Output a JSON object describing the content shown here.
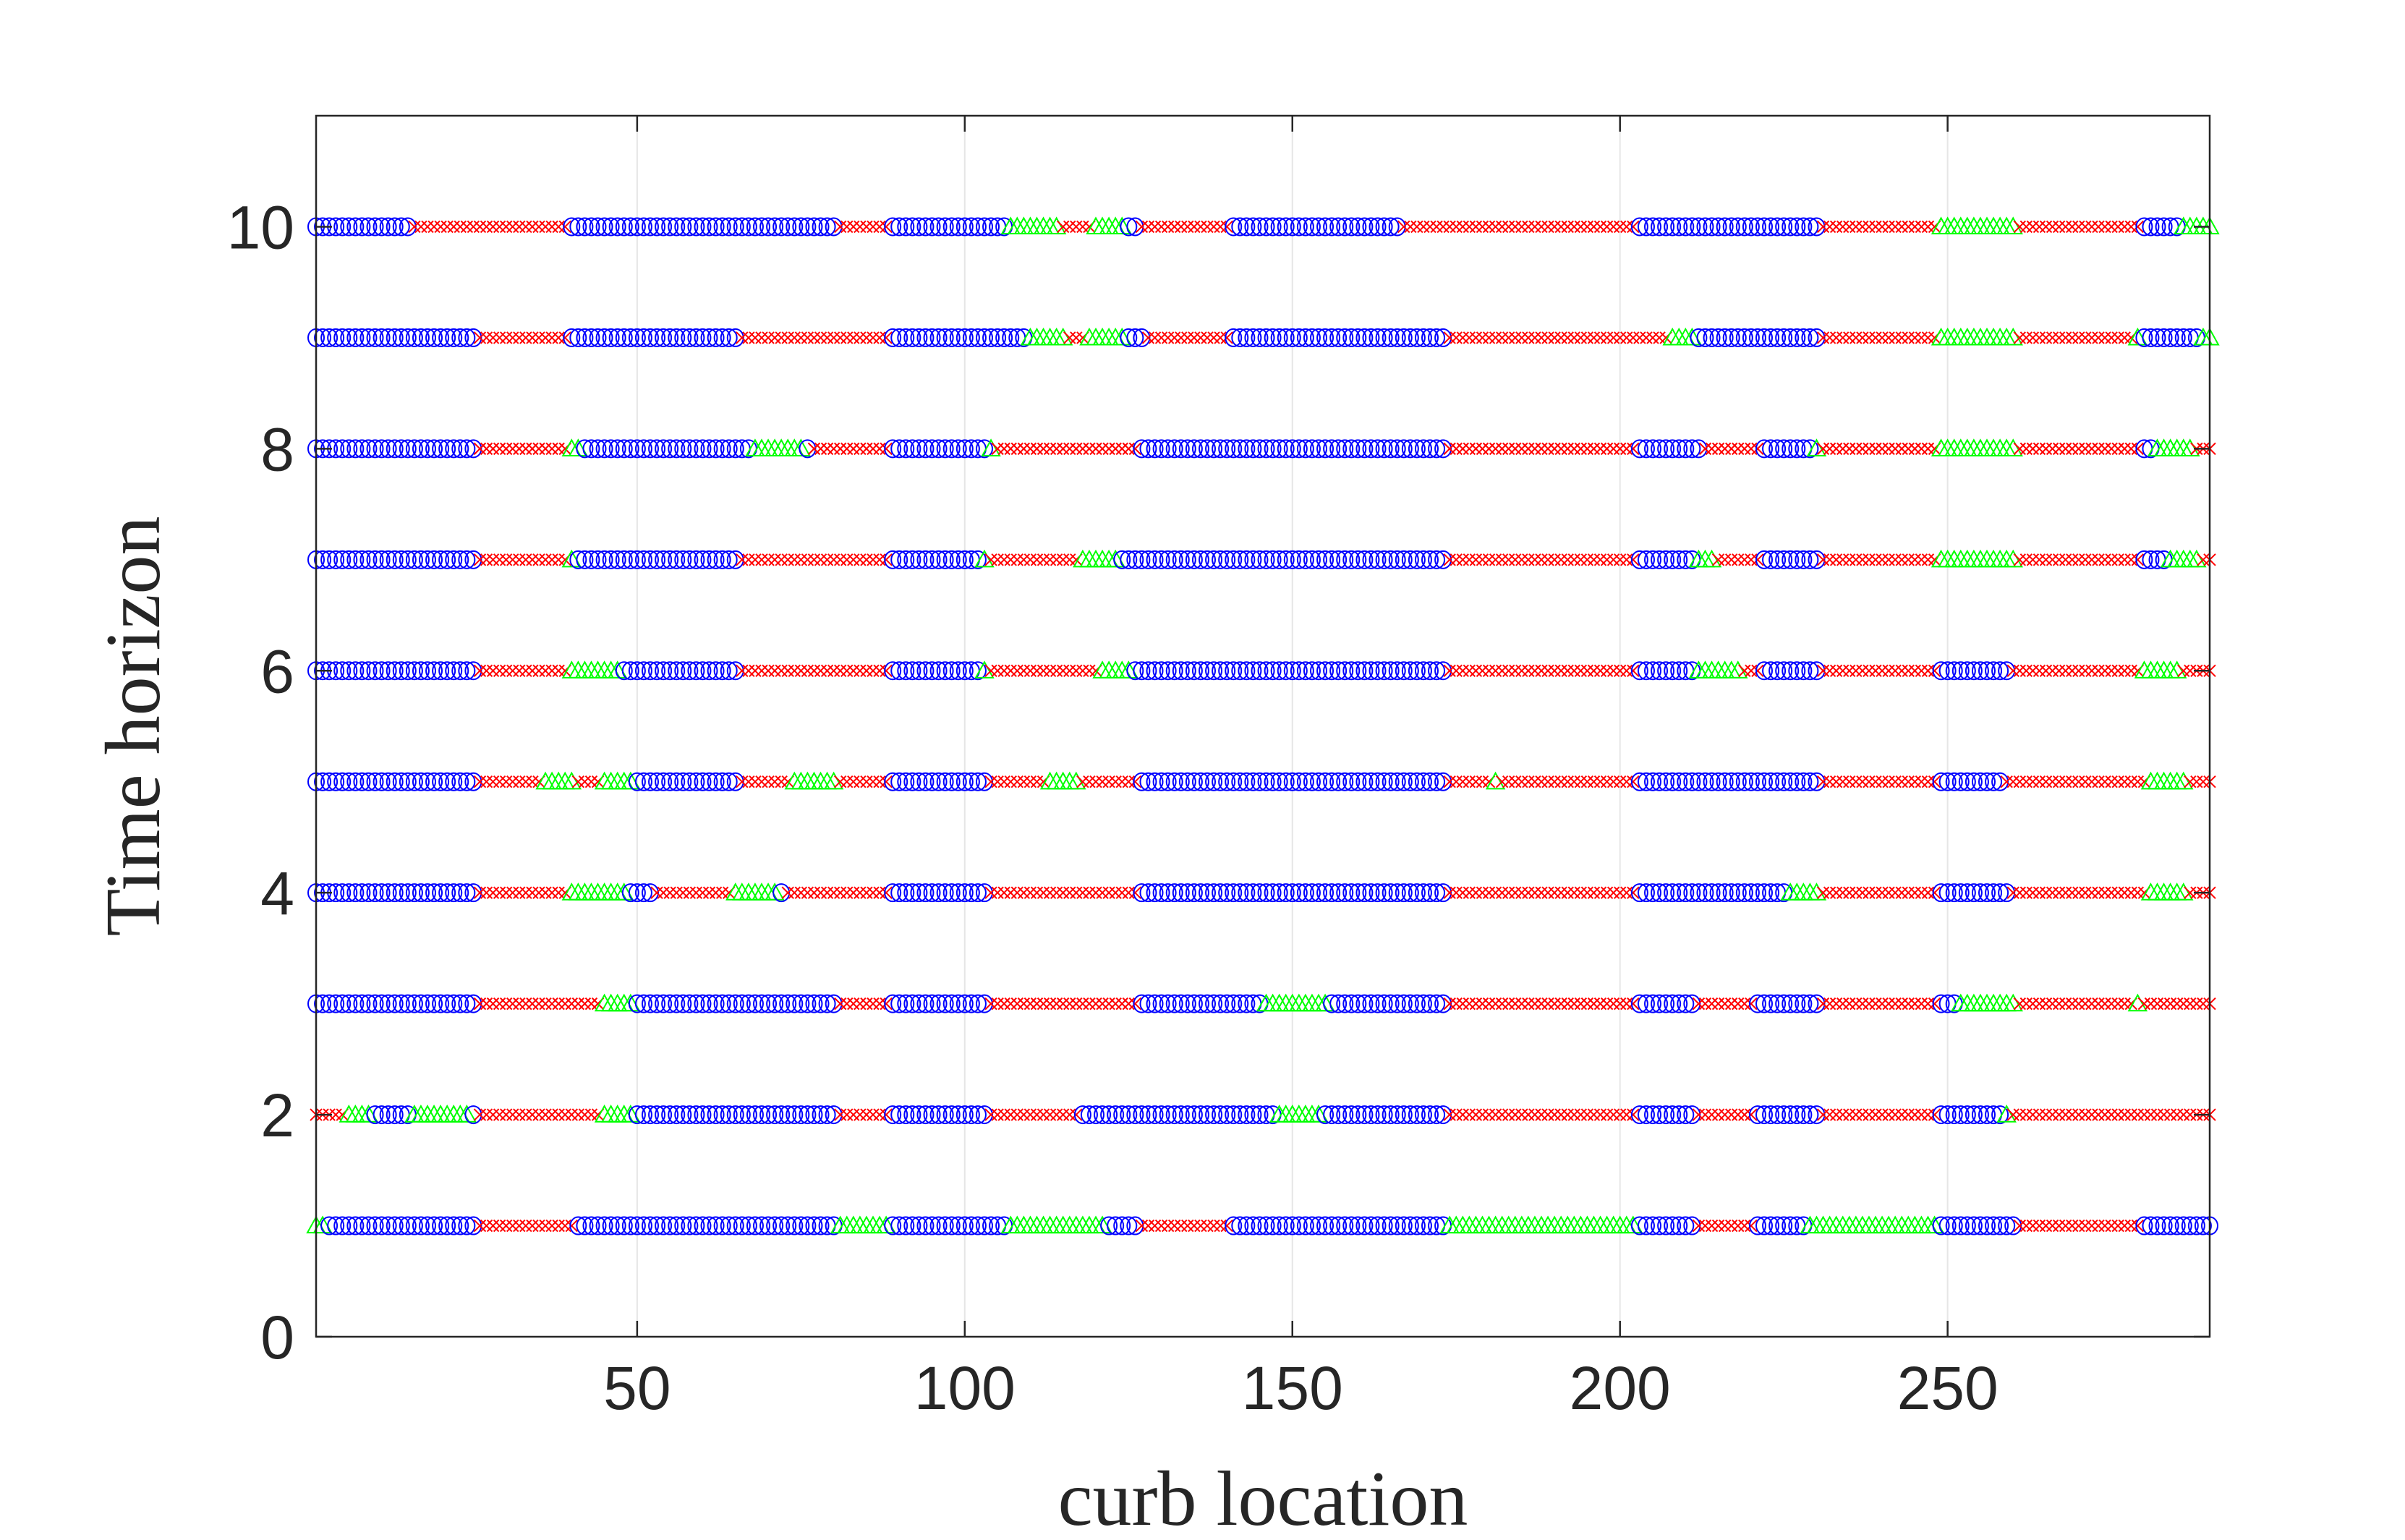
{
  "chart_data": {
    "type": "scatter",
    "title": "",
    "xlabel": "curb location",
    "ylabel": "Time horizon",
    "xlim": [
      1,
      290
    ],
    "ylim": [
      0,
      11
    ],
    "xticks": [
      50,
      100,
      150,
      200,
      250
    ],
    "yticks": [
      0,
      2,
      4,
      6,
      8,
      10
    ],
    "grid": "x",
    "colors": {
      "circle": "#0000ff",
      "cross": "#ff0000",
      "triangle": "#00ff00",
      "axis": "#262626",
      "grid": "#e6e6e6"
    },
    "marker_types": [
      "circle",
      "cross",
      "triangle"
    ],
    "rows": [
      {
        "y": 1,
        "segments": [
          [
            1,
            2,
            "triangle"
          ],
          [
            3,
            25,
            "circle"
          ],
          [
            26,
            40,
            "cross"
          ],
          [
            41,
            80,
            "circle"
          ],
          [
            81,
            88,
            "triangle"
          ],
          [
            89,
            106,
            "circle"
          ],
          [
            107,
            121,
            "triangle"
          ],
          [
            122,
            126,
            "circle"
          ],
          [
            127,
            140,
            "cross"
          ],
          [
            141,
            173,
            "circle"
          ],
          [
            174,
            202,
            "triangle"
          ],
          [
            203,
            211,
            "circle"
          ],
          [
            212,
            220,
            "cross"
          ],
          [
            221,
            228,
            "circle"
          ],
          [
            229,
            248,
            "triangle"
          ],
          [
            249,
            260,
            "circle"
          ],
          [
            261,
            279,
            "cross"
          ],
          [
            280,
            290,
            "circle"
          ]
        ]
      },
      {
        "y": 2,
        "segments": [
          [
            1,
            5,
            "cross"
          ],
          [
            6,
            9,
            "triangle"
          ],
          [
            10,
            15,
            "circle"
          ],
          [
            16,
            24,
            "triangle"
          ],
          [
            25,
            25,
            "circle"
          ],
          [
            26,
            44,
            "cross"
          ],
          [
            45,
            49,
            "triangle"
          ],
          [
            50,
            80,
            "circle"
          ],
          [
            81,
            88,
            "cross"
          ],
          [
            89,
            103,
            "circle"
          ],
          [
            104,
            117,
            "cross"
          ],
          [
            118,
            147,
            "circle"
          ],
          [
            148,
            154,
            "triangle"
          ],
          [
            155,
            173,
            "circle"
          ],
          [
            174,
            202,
            "cross"
          ],
          [
            203,
            211,
            "circle"
          ],
          [
            212,
            220,
            "cross"
          ],
          [
            221,
            230,
            "circle"
          ],
          [
            231,
            248,
            "cross"
          ],
          [
            249,
            258,
            "circle"
          ],
          [
            259,
            259,
            "triangle"
          ],
          [
            260,
            290,
            "cross"
          ]
        ]
      },
      {
        "y": 3,
        "segments": [
          [
            1,
            25,
            "circle"
          ],
          [
            26,
            44,
            "cross"
          ],
          [
            45,
            49,
            "triangle"
          ],
          [
            50,
            80,
            "circle"
          ],
          [
            81,
            88,
            "cross"
          ],
          [
            89,
            103,
            "circle"
          ],
          [
            104,
            126,
            "cross"
          ],
          [
            127,
            145,
            "circle"
          ],
          [
            146,
            155,
            "triangle"
          ],
          [
            156,
            173,
            "circle"
          ],
          [
            174,
            202,
            "cross"
          ],
          [
            203,
            211,
            "circle"
          ],
          [
            212,
            220,
            "cross"
          ],
          [
            221,
            230,
            "circle"
          ],
          [
            231,
            248,
            "cross"
          ],
          [
            249,
            251,
            "circle"
          ],
          [
            252,
            260,
            "triangle"
          ],
          [
            261,
            278,
            "cross"
          ],
          [
            279,
            279,
            "triangle"
          ],
          [
            280,
            290,
            "cross"
          ]
        ]
      },
      {
        "y": 4,
        "segments": [
          [
            1,
            25,
            "circle"
          ],
          [
            26,
            39,
            "cross"
          ],
          [
            40,
            48,
            "triangle"
          ],
          [
            49,
            52,
            "circle"
          ],
          [
            53,
            64,
            "cross"
          ],
          [
            65,
            71,
            "triangle"
          ],
          [
            72,
            72,
            "circle"
          ],
          [
            73,
            88,
            "cross"
          ],
          [
            89,
            103,
            "circle"
          ],
          [
            104,
            126,
            "cross"
          ],
          [
            127,
            173,
            "circle"
          ],
          [
            174,
            202,
            "cross"
          ],
          [
            203,
            225,
            "circle"
          ],
          [
            226,
            230,
            "triangle"
          ],
          [
            231,
            248,
            "cross"
          ],
          [
            249,
            259,
            "circle"
          ],
          [
            260,
            280,
            "cross"
          ],
          [
            281,
            286,
            "triangle"
          ],
          [
            287,
            290,
            "cross"
          ]
        ]
      },
      {
        "y": 5,
        "segments": [
          [
            1,
            25,
            "circle"
          ],
          [
            26,
            35,
            "cross"
          ],
          [
            36,
            40,
            "triangle"
          ],
          [
            41,
            44,
            "cross"
          ],
          [
            45,
            49,
            "triangle"
          ],
          [
            50,
            65,
            "circle"
          ],
          [
            66,
            73,
            "cross"
          ],
          [
            74,
            80,
            "triangle"
          ],
          [
            81,
            88,
            "cross"
          ],
          [
            89,
            103,
            "circle"
          ],
          [
            104,
            112,
            "cross"
          ],
          [
            113,
            117,
            "triangle"
          ],
          [
            118,
            126,
            "cross"
          ],
          [
            127,
            173,
            "circle"
          ],
          [
            174,
            180,
            "cross"
          ],
          [
            181,
            181,
            "triangle"
          ],
          [
            182,
            202,
            "cross"
          ],
          [
            203,
            230,
            "circle"
          ],
          [
            231,
            248,
            "cross"
          ],
          [
            249,
            258,
            "circle"
          ],
          [
            259,
            280,
            "cross"
          ],
          [
            281,
            286,
            "triangle"
          ],
          [
            287,
            290,
            "cross"
          ]
        ]
      },
      {
        "y": 6,
        "segments": [
          [
            1,
            25,
            "circle"
          ],
          [
            26,
            39,
            "cross"
          ],
          [
            40,
            47,
            "triangle"
          ],
          [
            48,
            65,
            "circle"
          ],
          [
            66,
            88,
            "cross"
          ],
          [
            89,
            102,
            "circle"
          ],
          [
            103,
            103,
            "triangle"
          ],
          [
            104,
            120,
            "cross"
          ],
          [
            121,
            125,
            "triangle"
          ],
          [
            126,
            173,
            "circle"
          ],
          [
            174,
            202,
            "cross"
          ],
          [
            203,
            211,
            "circle"
          ],
          [
            212,
            218,
            "triangle"
          ],
          [
            219,
            221,
            "cross"
          ],
          [
            222,
            230,
            "circle"
          ],
          [
            231,
            248,
            "cross"
          ],
          [
            249,
            259,
            "circle"
          ],
          [
            260,
            279,
            "cross"
          ],
          [
            280,
            285,
            "triangle"
          ],
          [
            286,
            290,
            "cross"
          ]
        ]
      },
      {
        "y": 7,
        "segments": [
          [
            1,
            25,
            "circle"
          ],
          [
            26,
            39,
            "cross"
          ],
          [
            40,
            40,
            "triangle"
          ],
          [
            41,
            65,
            "circle"
          ],
          [
            66,
            88,
            "cross"
          ],
          [
            89,
            102,
            "circle"
          ],
          [
            103,
            103,
            "triangle"
          ],
          [
            104,
            117,
            "cross"
          ],
          [
            118,
            123,
            "triangle"
          ],
          [
            124,
            173,
            "circle"
          ],
          [
            174,
            202,
            "cross"
          ],
          [
            203,
            211,
            "circle"
          ],
          [
            212,
            214,
            "triangle"
          ],
          [
            215,
            221,
            "cross"
          ],
          [
            222,
            230,
            "circle"
          ],
          [
            231,
            248,
            "cross"
          ],
          [
            249,
            260,
            "triangle"
          ],
          [
            261,
            279,
            "cross"
          ],
          [
            280,
            283,
            "circle"
          ],
          [
            284,
            288,
            "triangle"
          ],
          [
            289,
            290,
            "cross"
          ]
        ]
      },
      {
        "y": 8,
        "segments": [
          [
            1,
            25,
            "circle"
          ],
          [
            26,
            39,
            "cross"
          ],
          [
            40,
            41,
            "triangle"
          ],
          [
            42,
            67,
            "circle"
          ],
          [
            68,
            75,
            "triangle"
          ],
          [
            76,
            76,
            "circle"
          ],
          [
            77,
            88,
            "cross"
          ],
          [
            89,
            103,
            "circle"
          ],
          [
            104,
            104,
            "triangle"
          ],
          [
            105,
            126,
            "cross"
          ],
          [
            127,
            173,
            "circle"
          ],
          [
            174,
            202,
            "cross"
          ],
          [
            203,
            212,
            "circle"
          ],
          [
            213,
            221,
            "cross"
          ],
          [
            222,
            229,
            "circle"
          ],
          [
            230,
            230,
            "triangle"
          ],
          [
            231,
            248,
            "cross"
          ],
          [
            249,
            260,
            "triangle"
          ],
          [
            261,
            279,
            "cross"
          ],
          [
            280,
            281,
            "circle"
          ],
          [
            282,
            287,
            "triangle"
          ],
          [
            288,
            290,
            "cross"
          ]
        ]
      },
      {
        "y": 9,
        "segments": [
          [
            1,
            25,
            "circle"
          ],
          [
            26,
            39,
            "cross"
          ],
          [
            40,
            65,
            "circle"
          ],
          [
            66,
            88,
            "cross"
          ],
          [
            89,
            109,
            "circle"
          ],
          [
            110,
            115,
            "triangle"
          ],
          [
            116,
            118,
            "cross"
          ],
          [
            119,
            124,
            "triangle"
          ],
          [
            125,
            127,
            "circle"
          ],
          [
            128,
            140,
            "cross"
          ],
          [
            141,
            173,
            "circle"
          ],
          [
            174,
            207,
            "cross"
          ],
          [
            208,
            211,
            "triangle"
          ],
          [
            212,
            230,
            "circle"
          ],
          [
            231,
            248,
            "cross"
          ],
          [
            249,
            260,
            "triangle"
          ],
          [
            261,
            278,
            "cross"
          ],
          [
            279,
            279,
            "triangle"
          ],
          [
            280,
            288,
            "circle"
          ],
          [
            289,
            290,
            "triangle"
          ]
        ]
      },
      {
        "y": 10,
        "segments": [
          [
            1,
            15,
            "circle"
          ],
          [
            16,
            39,
            "cross"
          ],
          [
            40,
            80,
            "circle"
          ],
          [
            81,
            88,
            "cross"
          ],
          [
            89,
            106,
            "circle"
          ],
          [
            107,
            114,
            "triangle"
          ],
          [
            115,
            119,
            "cross"
          ],
          [
            120,
            124,
            "triangle"
          ],
          [
            125,
            126,
            "circle"
          ],
          [
            127,
            140,
            "cross"
          ],
          [
            141,
            166,
            "circle"
          ],
          [
            167,
            202,
            "cross"
          ],
          [
            203,
            230,
            "circle"
          ],
          [
            231,
            248,
            "cross"
          ],
          [
            249,
            260,
            "triangle"
          ],
          [
            261,
            279,
            "cross"
          ],
          [
            280,
            285,
            "circle"
          ],
          [
            286,
            290,
            "triangle"
          ]
        ]
      }
    ]
  }
}
